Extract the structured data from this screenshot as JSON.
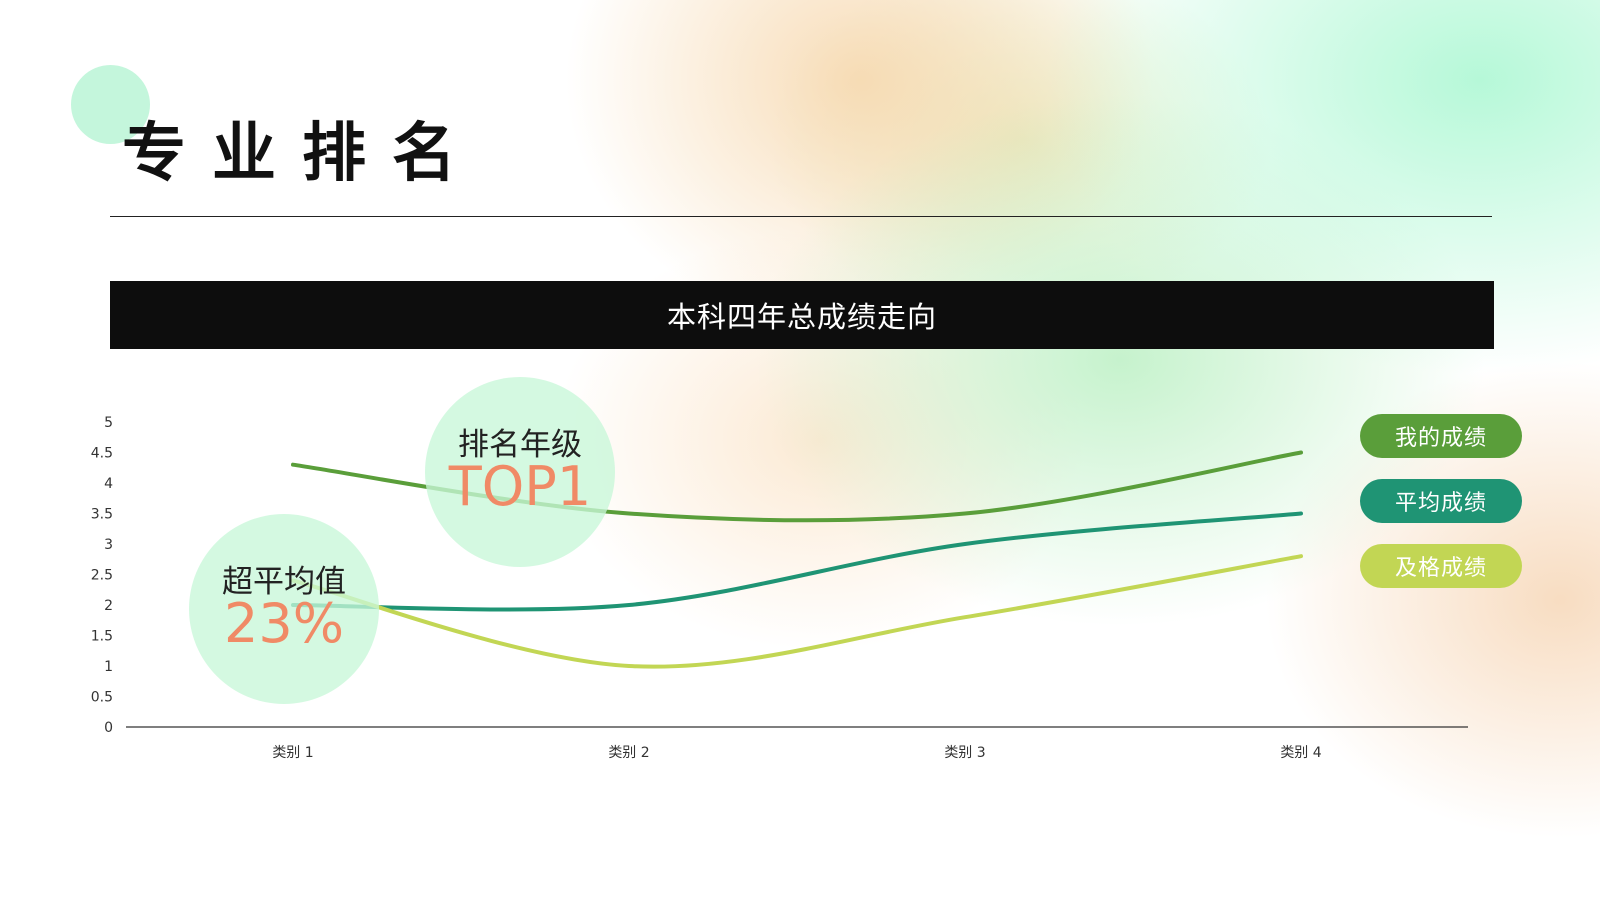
{
  "slide": {
    "title": "专业排名"
  },
  "chart_data": {
    "type": "line",
    "title": "本科四年总成绩走向",
    "categories": [
      "类别 1",
      "类别 2",
      "类别 3",
      "类别 4"
    ],
    "ylim": [
      0,
      5
    ],
    "yticks": [
      "0",
      "0.5",
      "1",
      "1.5",
      "2",
      "2.5",
      "3",
      "3.5",
      "4",
      "4.5",
      "5"
    ],
    "grid": false,
    "legend_position": "right",
    "series": [
      {
        "name": "我的成绩",
        "values": [
          4.3,
          3.5,
          3.5,
          4.5
        ],
        "color": "#5a9e3a"
      },
      {
        "name": "平均成绩",
        "values": [
          2.0,
          2.0,
          3.0,
          3.5
        ],
        "color": "#1f9474"
      },
      {
        "name": "及格成绩",
        "values": [
          2.4,
          1.0,
          1.8,
          2.8
        ],
        "color": "#c2d654"
      }
    ]
  },
  "callouts": [
    {
      "label": "排名年级",
      "value": "TOP1"
    },
    {
      "label": "超平均值",
      "value": "23%"
    }
  ],
  "colors": {
    "accent_circle": "#c4f6dc",
    "callout_value": "#f08a66",
    "title_bar": "#0d0d0d"
  }
}
